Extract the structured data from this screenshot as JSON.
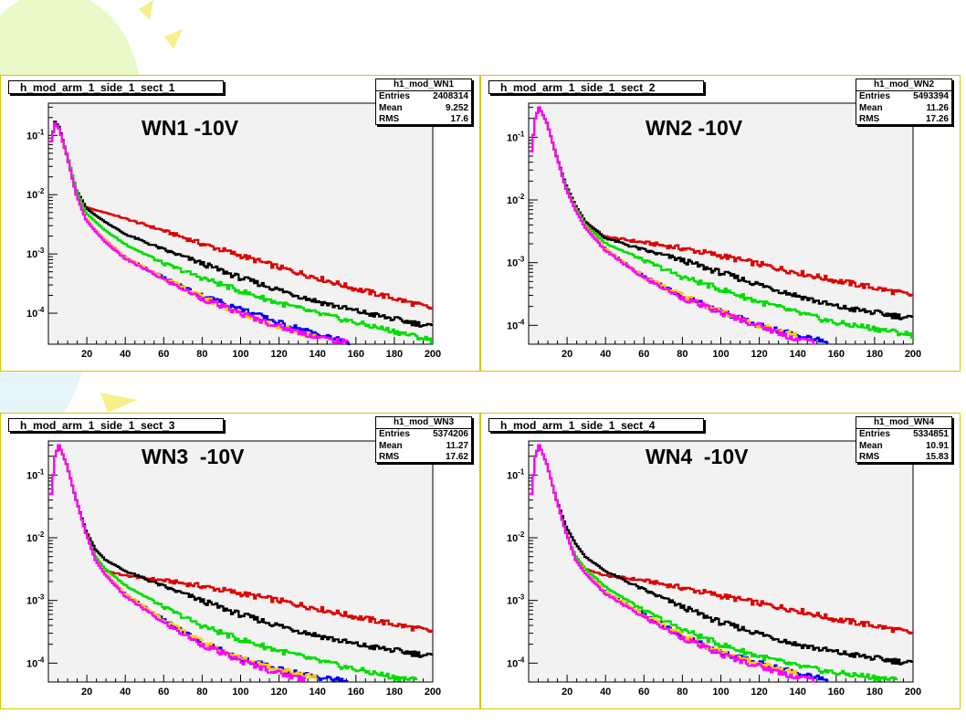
{
  "colors": {
    "frame": "#d8c400",
    "plot_bg": "#f2f2f2",
    "series": [
      "#dd0000",
      "#000000",
      "#00dd00",
      "#0000ee",
      "#ffcc00",
      "#ff00ff"
    ]
  },
  "panels": [
    {
      "title": "h_mod_arm_1_side_1_sect_1",
      "stats": {
        "name": "h1_mod_WN1",
        "entries_label": "Entries",
        "entries": "2408314",
        "mean_label": "Mean",
        "mean": "9.252",
        "rms_label": "RMS",
        "rms": "17.6"
      },
      "label": "WN1 -10V"
    },
    {
      "title": "h_mod_arm_1_side_1_sect_2",
      "stats": {
        "name": "h1_mod_WN2",
        "entries_label": "Entries",
        "entries": "5493394",
        "mean_label": "Mean",
        "mean": "11.26",
        "rms_label": "RMS",
        "rms": "17.26"
      },
      "label": "WN2 -10V"
    },
    {
      "title": "h_mod_arm_1_side_1_sect_3",
      "stats": {
        "name": "h1_mod_WN3",
        "entries_label": "Entries",
        "entries": "5374206",
        "mean_label": "Mean",
        "mean": "11.27",
        "rms_label": "RMS",
        "rms": "17.62"
      },
      "label": "WN3  -10V"
    },
    {
      "title": "h_mod_arm_1_side_1_sect_4",
      "stats": {
        "name": "h1_mod_WN4",
        "entries_label": "Entries",
        "entries": "5334851",
        "mean_label": "Mean",
        "mean": "10.91",
        "rms_label": "RMS",
        "rms": "15.83"
      },
      "label": "WN4  -10V"
    }
  ],
  "chart_data": [
    {
      "type": "line",
      "log_y": true,
      "xlim": [
        0,
        200
      ],
      "ylim": [
        3e-05,
        0.35
      ],
      "xticks": [
        20,
        40,
        60,
        80,
        100,
        120,
        140,
        160,
        180,
        200
      ],
      "yticks": [
        {
          "v": 0.1,
          "label": "10^-1"
        },
        {
          "v": 0.01,
          "label": "10^-2"
        },
        {
          "v": 0.001,
          "label": "10^-3"
        },
        {
          "v": 0.0001,
          "label": "10^-4"
        }
      ],
      "x": [
        2,
        4,
        6,
        10,
        15,
        20,
        25,
        30,
        40,
        60,
        80,
        100,
        120,
        140,
        160,
        180,
        200
      ],
      "series": [
        {
          "color": "#dd0000",
          "values": [
            0.08,
            0.16,
            0.13,
            0.05,
            0.012,
            0.0062,
            0.0055,
            0.005,
            0.004,
            0.0025,
            0.0015,
            0.00095,
            0.0006,
            0.0004,
            0.00026,
            0.00018,
            0.00012
          ]
        },
        {
          "color": "#000000",
          "values": [
            0.08,
            0.17,
            0.14,
            0.05,
            0.012,
            0.006,
            0.0045,
            0.0035,
            0.0022,
            0.0012,
            0.0007,
            0.0004,
            0.00025,
            0.00016,
            0.00011,
            8e-05,
            6e-05
          ]
        },
        {
          "color": "#00dd00",
          "values": [
            0.08,
            0.16,
            0.13,
            0.05,
            0.012,
            0.005,
            0.0035,
            0.0025,
            0.0015,
            0.0007,
            0.0004,
            0.00024,
            0.00015,
            0.0001,
            7e-05,
            5e-05,
            3.5e-05
          ]
        },
        {
          "color": "#0000ee",
          "values": [
            0.08,
            0.16,
            0.13,
            0.048,
            0.01,
            0.004,
            0.0025,
            0.0017,
            0.0009,
            0.0004,
            0.0002,
            0.00012,
            7e-05,
            4.5e-05,
            3e-05,
            null,
            null
          ]
        },
        {
          "color": "#ffcc00",
          "values": [
            0.08,
            0.16,
            0.13,
            0.048,
            0.01,
            0.004,
            0.0025,
            0.0017,
            0.0009,
            0.0004,
            0.00019,
            0.0001,
            6e-05,
            4e-05,
            null,
            null,
            null
          ]
        },
        {
          "color": "#ff00ff",
          "values": [
            0.08,
            0.16,
            0.13,
            0.048,
            0.01,
            0.0038,
            0.0024,
            0.0016,
            0.00085,
            0.00038,
            0.00018,
            0.0001,
            6e-05,
            4e-05,
            3e-05,
            null,
            null
          ]
        }
      ]
    },
    {
      "type": "line",
      "log_y": true,
      "xlim": [
        0,
        200
      ],
      "ylim": [
        5e-05,
        0.35
      ],
      "xticks": [
        20,
        40,
        60,
        80,
        100,
        120,
        140,
        160,
        180,
        200
      ],
      "yticks": [
        {
          "v": 0.1,
          "label": "10^-1"
        },
        {
          "v": 0.01,
          "label": "10^-2"
        },
        {
          "v": 0.001,
          "label": "10^-3"
        },
        {
          "v": 0.0001,
          "label": "10^-4"
        }
      ],
      "x": [
        2,
        4,
        6,
        10,
        15,
        20,
        25,
        30,
        40,
        60,
        80,
        100,
        120,
        140,
        160,
        180,
        200
      ],
      "series": [
        {
          "color": "#dd0000",
          "values": [
            0.06,
            0.2,
            0.3,
            0.17,
            0.05,
            0.017,
            0.008,
            0.0045,
            0.0026,
            0.0021,
            0.0017,
            0.0013,
            0.00095,
            0.0007,
            0.00052,
            0.0004,
            0.0003
          ]
        },
        {
          "color": "#000000",
          "values": [
            0.06,
            0.2,
            0.3,
            0.17,
            0.05,
            0.017,
            0.008,
            0.0045,
            0.0025,
            0.0016,
            0.0011,
            0.0007,
            0.00045,
            0.0003,
            0.0002,
            0.00016,
            0.00013
          ]
        },
        {
          "color": "#00dd00",
          "values": [
            0.06,
            0.2,
            0.3,
            0.17,
            0.05,
            0.016,
            0.0075,
            0.004,
            0.0021,
            0.0011,
            0.0006,
            0.00038,
            0.00024,
            0.00016,
            0.00011,
            9e-05,
            7e-05
          ]
        },
        {
          "color": "#0000ee",
          "values": [
            0.06,
            0.2,
            0.3,
            0.17,
            0.05,
            0.015,
            0.007,
            0.0037,
            0.0017,
            0.0006,
            0.0003,
            0.00017,
            0.0001,
            7e-05,
            5e-05,
            null,
            null
          ]
        },
        {
          "color": "#ffcc00",
          "values": [
            0.06,
            0.2,
            0.3,
            0.17,
            0.05,
            0.015,
            0.007,
            0.0037,
            0.0017,
            0.0006,
            0.0003,
            0.00017,
            0.0001,
            7e-05,
            null,
            null,
            null
          ]
        },
        {
          "color": "#ff00ff",
          "values": [
            0.06,
            0.2,
            0.3,
            0.17,
            0.05,
            0.015,
            0.0068,
            0.0036,
            0.0016,
            0.00058,
            0.00028,
            0.00016,
            0.0001,
            6e-05,
            5e-05,
            null,
            null
          ]
        }
      ]
    },
    {
      "type": "line",
      "log_y": true,
      "xlim": [
        0,
        200
      ],
      "ylim": [
        5e-05,
        0.35
      ],
      "xticks": [
        20,
        40,
        60,
        80,
        100,
        120,
        140,
        160,
        180,
        200
      ],
      "yticks": [
        {
          "v": 0.1,
          "label": "10^-1"
        },
        {
          "v": 0.01,
          "label": "10^-2"
        },
        {
          "v": 0.001,
          "label": "10^-3"
        },
        {
          "v": 0.0001,
          "label": "10^-4"
        }
      ],
      "x": [
        2,
        4,
        6,
        10,
        15,
        20,
        25,
        30,
        40,
        60,
        80,
        100,
        120,
        140,
        160,
        180,
        200
      ],
      "series": [
        {
          "color": "#dd0000",
          "values": [
            0.05,
            0.2,
            0.3,
            0.15,
            0.04,
            0.012,
            0.005,
            0.003,
            0.0025,
            0.0021,
            0.0017,
            0.0013,
            0.001,
            0.00075,
            0.00055,
            0.00042,
            0.00032
          ]
        },
        {
          "color": "#000000",
          "values": [
            0.05,
            0.2,
            0.3,
            0.15,
            0.04,
            0.013,
            0.0065,
            0.0045,
            0.003,
            0.0017,
            0.001,
            0.0006,
            0.0004,
            0.00028,
            0.0002,
            0.00016,
            0.00013
          ]
        },
        {
          "color": "#00dd00",
          "values": [
            0.05,
            0.2,
            0.3,
            0.15,
            0.04,
            0.012,
            0.005,
            0.0032,
            0.0018,
            0.0008,
            0.0004,
            0.00024,
            0.00016,
            0.00011,
            8e-05,
            6e-05,
            5e-05
          ]
        },
        {
          "color": "#0000ee",
          "values": [
            0.05,
            0.2,
            0.3,
            0.15,
            0.04,
            0.012,
            0.0045,
            0.0027,
            0.0013,
            0.0005,
            0.00022,
            0.00012,
            8e-05,
            6e-05,
            5e-05,
            null,
            null
          ]
        },
        {
          "color": "#ffcc00",
          "values": [
            0.05,
            0.2,
            0.3,
            0.15,
            0.04,
            0.012,
            0.0045,
            0.0027,
            0.0013,
            0.0005,
            0.00022,
            0.00012,
            8e-05,
            6e-05,
            null,
            null,
            null
          ]
        },
        {
          "color": "#ff00ff",
          "values": [
            0.05,
            0.2,
            0.3,
            0.15,
            0.04,
            0.012,
            0.0044,
            0.0026,
            0.0012,
            0.00045,
            0.0002,
            0.00011,
            7e-05,
            5e-05,
            5e-05,
            null,
            null
          ]
        }
      ]
    },
    {
      "type": "line",
      "log_y": true,
      "xlim": [
        0,
        200
      ],
      "ylim": [
        5e-05,
        0.35
      ],
      "xticks": [
        20,
        40,
        60,
        80,
        100,
        120,
        140,
        160,
        180,
        200
      ],
      "yticks": [
        {
          "v": 0.1,
          "label": "10^-1"
        },
        {
          "v": 0.01,
          "label": "10^-2"
        },
        {
          "v": 0.001,
          "label": "10^-3"
        },
        {
          "v": 0.0001,
          "label": "10^-4"
        }
      ],
      "x": [
        2,
        4,
        6,
        10,
        15,
        20,
        25,
        30,
        40,
        60,
        80,
        100,
        120,
        140,
        160,
        180,
        200
      ],
      "series": [
        {
          "color": "#dd0000",
          "values": [
            0.05,
            0.2,
            0.3,
            0.15,
            0.04,
            0.012,
            0.005,
            0.0032,
            0.0025,
            0.0021,
            0.0016,
            0.0012,
            0.0009,
            0.0007,
            0.0005,
            0.0004,
            0.0003
          ]
        },
        {
          "color": "#000000",
          "values": [
            0.05,
            0.2,
            0.3,
            0.15,
            0.04,
            0.015,
            0.008,
            0.005,
            0.003,
            0.0015,
            0.0008,
            0.00045,
            0.0003,
            0.0002,
            0.00015,
            0.00012,
            0.0001
          ]
        },
        {
          "color": "#00dd00",
          "values": [
            0.05,
            0.2,
            0.3,
            0.15,
            0.04,
            0.012,
            0.005,
            0.0032,
            0.0017,
            0.0007,
            0.00035,
            0.0002,
            0.00013,
            9e-05,
            7e-05,
            6e-05,
            5e-05
          ]
        },
        {
          "color": "#0000ee",
          "values": [
            0.05,
            0.2,
            0.3,
            0.15,
            0.04,
            0.012,
            0.0045,
            0.0028,
            0.0014,
            0.0006,
            0.00028,
            0.00015,
            0.0001,
            7e-05,
            5e-05,
            null,
            null
          ]
        },
        {
          "color": "#ffcc00",
          "values": [
            0.05,
            0.2,
            0.3,
            0.15,
            0.04,
            0.012,
            0.0045,
            0.0028,
            0.0014,
            0.0006,
            0.00028,
            0.00015,
            0.0001,
            7e-05,
            null,
            null,
            null
          ]
        },
        {
          "color": "#ff00ff",
          "values": [
            0.05,
            0.2,
            0.3,
            0.15,
            0.04,
            0.012,
            0.0044,
            0.0027,
            0.0013,
            0.00055,
            0.00026,
            0.00014,
            9e-05,
            6e-05,
            5e-05,
            null,
            null
          ]
        }
      ]
    }
  ]
}
